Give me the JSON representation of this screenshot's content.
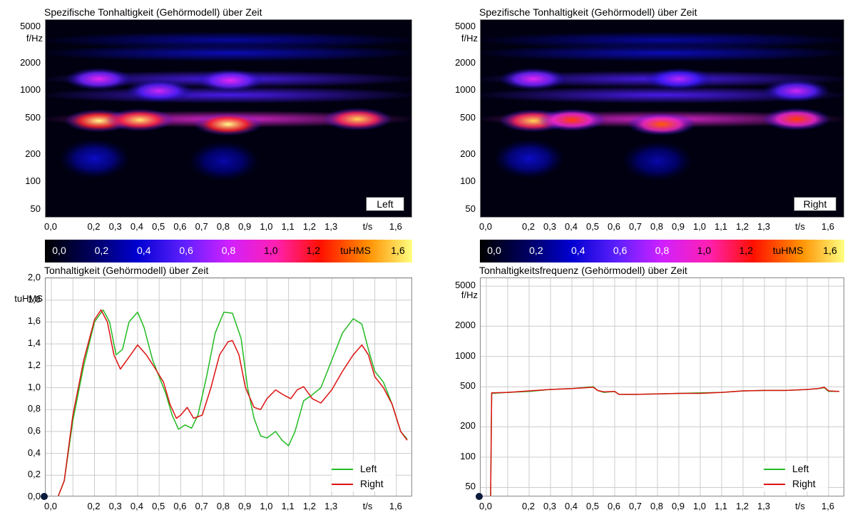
{
  "spectrograms": [
    {
      "title": "Spezifische Tonhaltigkeit (Gehörmodell) über Zeit",
      "channel": "Left",
      "yunit": "f/Hz",
      "yticks": [
        "5000",
        "2000",
        "1000",
        "500",
        "200",
        "100",
        "50"
      ],
      "xticks": [
        "0,0",
        "0,2",
        "0,3",
        "0,4",
        "0,5",
        "0,6",
        "0,7",
        "0,8",
        "0,9",
        "1,0",
        "1,1",
        "1,2",
        "1,3",
        "t/s",
        "1,6"
      ]
    },
    {
      "title": "Spezifische Tonhaltigkeit (Gehörmodell) über Zeit",
      "channel": "Right",
      "yunit": "f/Hz",
      "yticks": [
        "5000",
        "2000",
        "1000",
        "500",
        "200",
        "100",
        "50"
      ],
      "xticks": [
        "0,0",
        "0,2",
        "0,3",
        "0,4",
        "0,5",
        "0,6",
        "0,7",
        "0,8",
        "0,9",
        "1,0",
        "1,1",
        "1,2",
        "1,3",
        "t/s",
        "1,6"
      ]
    }
  ],
  "colorbar": {
    "labels": [
      "0,0",
      "0,2",
      "0,4",
      "0,6",
      "0,8",
      "1,0",
      "1,2",
      "tuHMS",
      "1,6"
    ],
    "colors": [
      "#000000",
      "#000060",
      "#0000d0",
      "#6020ff",
      "#d020ff",
      "#ff20b0",
      "#ff1000",
      "#ff9000",
      "#ffff80"
    ]
  },
  "left_plot": {
    "title": "Tonhaltigkeit (Gehörmodell) über Zeit",
    "yunit": "tuHMS",
    "yticks": [
      "2,0",
      "1,8",
      "1,6",
      "1,4",
      "1,2",
      "1,0",
      "0,8",
      "0,6",
      "0,4",
      "0,2",
      "0,0"
    ],
    "xticks": [
      "0,0",
      "0,2",
      "0,3",
      "0,4",
      "0,5",
      "0,6",
      "0,7",
      "0,8",
      "0,9",
      "1,0",
      "1,1",
      "1,2",
      "1,3",
      "t/s",
      "1,6"
    ],
    "legend": [
      {
        "name": "Left",
        "color": "#22bb22"
      },
      {
        "name": "Right",
        "color": "#dd1111"
      }
    ]
  },
  "right_plot": {
    "title": "Tonhaltigkeitsfrequenz (Gehörmodell) über Zeit",
    "yunit": "f/Hz",
    "yticks": [
      "5000",
      "2000",
      "1000",
      "500",
      "200",
      "100",
      "50"
    ],
    "xticks": [
      "0,0",
      "0,2",
      "0,3",
      "0,4",
      "0,5",
      "0,6",
      "0,7",
      "0,8",
      "0,9",
      "1,0",
      "1,1",
      "1,2",
      "1,3",
      "t/s",
      "1,6"
    ],
    "legend": [
      {
        "name": "Left",
        "color": "#22bb22"
      },
      {
        "name": "Right",
        "color": "#dd1111"
      }
    ]
  },
  "chart_data": [
    {
      "type": "heatmap",
      "title": "Spezifische Tonhaltigkeit (Gehörmodell) über Zeit",
      "channel": "Left",
      "xlabel": "t/s",
      "ylabel": "f/Hz",
      "ylog": true,
      "xlim": [
        0,
        1.65
      ],
      "ylim": [
        40,
        6000
      ],
      "zlabel": "tuHMS",
      "zlim": [
        0,
        1.7
      ],
      "peaks": [
        {
          "t": 0.22,
          "f": 470,
          "z": 1.7
        },
        {
          "t": 0.41,
          "f": 480,
          "z": 1.65
        },
        {
          "t": 0.82,
          "f": 430,
          "z": 1.7
        },
        {
          "t": 1.42,
          "f": 490,
          "z": 1.6
        },
        {
          "t": 0.22,
          "f": 1350,
          "z": 0.85
        },
        {
          "t": 0.83,
          "f": 1300,
          "z": 0.85
        },
        {
          "t": 0.5,
          "f": 1000,
          "z": 0.8
        },
        {
          "t": 0.2,
          "f": 180,
          "z": 0.35
        },
        {
          "t": 0.8,
          "f": 170,
          "z": 0.3
        }
      ]
    },
    {
      "type": "heatmap",
      "title": "Spezifische Tonhaltigkeit (Gehörmodell) über Zeit",
      "channel": "Right",
      "xlabel": "t/s",
      "ylabel": "f/Hz",
      "ylog": true,
      "xlim": [
        0,
        1.65
      ],
      "ylim": [
        40,
        6000
      ],
      "zlabel": "tuHMS",
      "zlim": [
        0,
        1.7
      ],
      "peaks": [
        {
          "t": 0.22,
          "f": 470,
          "z": 1.6
        },
        {
          "t": 0.4,
          "f": 480,
          "z": 1.3
        },
        {
          "t": 0.82,
          "f": 430,
          "z": 1.35
        },
        {
          "t": 1.45,
          "f": 490,
          "z": 1.3
        },
        {
          "t": 0.22,
          "f": 1350,
          "z": 0.85
        },
        {
          "t": 0.9,
          "f": 1350,
          "z": 0.75
        },
        {
          "t": 1.45,
          "f": 1000,
          "z": 0.8
        },
        {
          "t": 0.2,
          "f": 180,
          "z": 0.35
        },
        {
          "t": 0.8,
          "f": 170,
          "z": 0.3
        }
      ]
    },
    {
      "type": "line",
      "title": "Tonhaltigkeit (Gehörmodell) über Zeit",
      "xlabel": "t/s",
      "ylabel": "tuHMS",
      "xlim": [
        0,
        1.65
      ],
      "ylim": [
        0,
        2.0
      ],
      "grid": true,
      "legend": "bottom-right",
      "series": [
        {
          "name": "Left",
          "color": "#22bb22",
          "x": [
            0.0,
            0.03,
            0.06,
            0.1,
            0.15,
            0.2,
            0.24,
            0.27,
            0.3,
            0.33,
            0.36,
            0.4,
            0.43,
            0.47,
            0.5,
            0.53,
            0.56,
            0.59,
            0.62,
            0.65,
            0.68,
            0.72,
            0.76,
            0.8,
            0.84,
            0.88,
            0.91,
            0.94,
            0.97,
            1.0,
            1.04,
            1.07,
            1.1,
            1.13,
            1.17,
            1.2,
            1.25,
            1.3,
            1.35,
            1.4,
            1.44,
            1.47,
            1.5,
            1.54,
            1.58,
            1.62,
            1.65
          ],
          "y": [
            0.0,
            0.0,
            0.15,
            0.7,
            1.2,
            1.6,
            1.71,
            1.6,
            1.3,
            1.35,
            1.6,
            1.69,
            1.55,
            1.25,
            1.1,
            0.95,
            0.75,
            0.62,
            0.66,
            0.63,
            0.75,
            1.1,
            1.5,
            1.69,
            1.68,
            1.45,
            1.0,
            0.72,
            0.56,
            0.54,
            0.6,
            0.52,
            0.47,
            0.6,
            0.88,
            0.92,
            1.0,
            1.25,
            1.5,
            1.63,
            1.58,
            1.35,
            1.15,
            1.05,
            0.85,
            0.6,
            0.53
          ]
        },
        {
          "name": "Right",
          "color": "#dd1111",
          "x": [
            0.0,
            0.03,
            0.06,
            0.1,
            0.15,
            0.2,
            0.23,
            0.26,
            0.29,
            0.32,
            0.35,
            0.4,
            0.44,
            0.48,
            0.52,
            0.55,
            0.58,
            0.6,
            0.63,
            0.66,
            0.7,
            0.74,
            0.78,
            0.82,
            0.84,
            0.87,
            0.9,
            0.94,
            0.97,
            1.0,
            1.04,
            1.08,
            1.11,
            1.14,
            1.17,
            1.21,
            1.25,
            1.3,
            1.35,
            1.4,
            1.44,
            1.47,
            1.5,
            1.54,
            1.58,
            1.62,
            1.65
          ],
          "y": [
            0.0,
            0.0,
            0.15,
            0.75,
            1.25,
            1.62,
            1.71,
            1.6,
            1.3,
            1.17,
            1.25,
            1.39,
            1.3,
            1.18,
            1.05,
            0.85,
            0.72,
            0.75,
            0.82,
            0.72,
            0.75,
            1.0,
            1.3,
            1.42,
            1.43,
            1.3,
            1.0,
            0.82,
            0.8,
            0.9,
            0.98,
            0.93,
            0.9,
            0.98,
            1.01,
            0.9,
            0.86,
            0.98,
            1.15,
            1.3,
            1.39,
            1.3,
            1.1,
            1.0,
            0.85,
            0.6,
            0.52
          ]
        }
      ]
    },
    {
      "type": "line",
      "title": "Tonhaltigkeitsfrequenz (Gehörmodell) über Zeit",
      "xlabel": "t/s",
      "ylabel": "f/Hz",
      "ylog": true,
      "xlim": [
        0,
        1.65
      ],
      "ylim": [
        40,
        6000
      ],
      "grid": true,
      "legend": "bottom-right",
      "series": [
        {
          "name": "Left",
          "color": "#22bb22",
          "x": [
            0.02,
            0.025,
            0.1,
            0.2,
            0.3,
            0.4,
            0.5,
            0.52,
            0.55,
            0.6,
            0.62,
            0.7,
            0.8,
            0.9,
            1.0,
            1.1,
            1.2,
            1.3,
            1.4,
            1.5,
            1.55,
            1.58,
            1.6,
            1.65
          ],
          "y": [
            40,
            430,
            440,
            450,
            470,
            480,
            500,
            460,
            440,
            450,
            420,
            420,
            425,
            430,
            435,
            440,
            455,
            460,
            460,
            470,
            480,
            490,
            450,
            450
          ]
        },
        {
          "name": "Right",
          "color": "#dd1111",
          "x": [
            0.02,
            0.025,
            0.1,
            0.2,
            0.3,
            0.4,
            0.5,
            0.52,
            0.55,
            0.6,
            0.62,
            0.7,
            0.8,
            0.9,
            1.0,
            1.1,
            1.2,
            1.3,
            1.4,
            1.5,
            1.55,
            1.58,
            1.6,
            1.65
          ],
          "y": [
            40,
            435,
            440,
            455,
            470,
            480,
            495,
            460,
            445,
            450,
            420,
            420,
            425,
            430,
            430,
            440,
            455,
            460,
            460,
            470,
            480,
            495,
            455,
            450
          ]
        }
      ]
    }
  ]
}
